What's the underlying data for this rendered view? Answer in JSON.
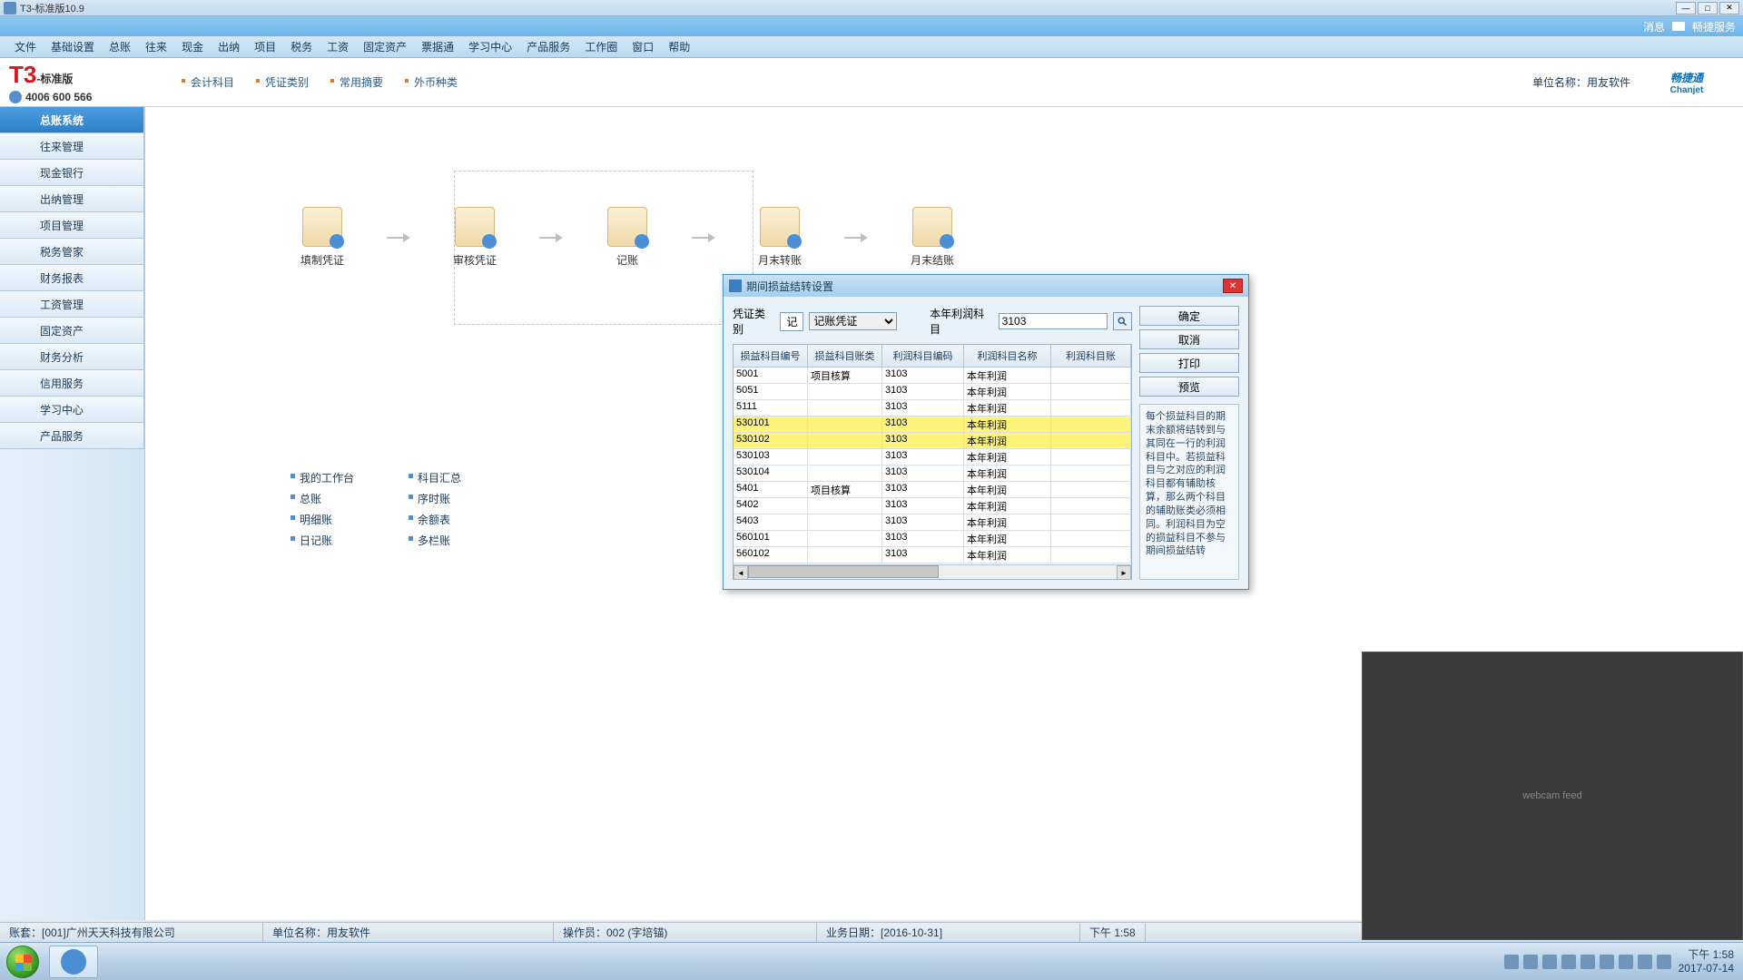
{
  "window": {
    "title": "T3-标准版10.9"
  },
  "msgbar": {
    "msg": "消息",
    "service": "畅捷服务"
  },
  "menubar": [
    "文件",
    "基础设置",
    "总账",
    "往来",
    "现金",
    "出纳",
    "项目",
    "税务",
    "工资",
    "固定资产",
    "票据通",
    "学习中心",
    "产品服务",
    "工作圈",
    "窗口",
    "帮助"
  ],
  "logo": {
    "prefix": "T3",
    "suffix": "-标准版",
    "phone": "4006 600 566"
  },
  "subtabs": [
    "会计科目",
    "凭证类别",
    "常用摘要",
    "外币种类"
  ],
  "unit": "单位名称：用友软件",
  "brand": {
    "cn": "畅捷通",
    "en": "Chanjet"
  },
  "sidebar": [
    {
      "label": "总账系统",
      "active": true
    },
    {
      "label": "往来管理"
    },
    {
      "label": "现金银行"
    },
    {
      "label": "出纳管理"
    },
    {
      "label": "项目管理"
    },
    {
      "label": "税务管家"
    },
    {
      "label": "财务报表"
    },
    {
      "label": "工资管理"
    },
    {
      "label": "固定资产"
    },
    {
      "label": "财务分析"
    },
    {
      "label": "信用服务"
    },
    {
      "label": "学习中心"
    },
    {
      "label": "产品服务"
    }
  ],
  "workflow": [
    "填制凭证",
    "审核凭证",
    "记账",
    "月末转账",
    "月末结账"
  ],
  "quicklinks": {
    "col1": [
      "我的工作台",
      "总账",
      "明细账",
      "日记账"
    ],
    "col2": [
      "科目汇总",
      "序时账",
      "余额表",
      "多栏账"
    ]
  },
  "dialog": {
    "title": "期间损益结转设置",
    "voucher_type_label": "凭证类别",
    "voucher_type_prefix": "记",
    "voucher_type_value": "记账凭证",
    "profit_account_label": "本年利润科目",
    "profit_account_value": "3103",
    "buttons": {
      "ok": "确定",
      "cancel": "取消",
      "print": "打印",
      "preview": "预览"
    },
    "columns": [
      "损益科目编号",
      "损益科目账类",
      "利润科目编码",
      "利润科目名称",
      "利润科目账"
    ],
    "rows": [
      {
        "c0": "5001",
        "c1": "项目核算",
        "c2": "3103",
        "c3": "本年利润",
        "hl": false
      },
      {
        "c0": "5051",
        "c1": "",
        "c2": "3103",
        "c3": "本年利润",
        "hl": false
      },
      {
        "c0": "5111",
        "c1": "",
        "c2": "3103",
        "c3": "本年利润",
        "hl": false
      },
      {
        "c0": "530101",
        "c1": "",
        "c2": "3103",
        "c3": "本年利润",
        "hl": true
      },
      {
        "c0": "530102",
        "c1": "",
        "c2": "3103",
        "c3": "本年利润",
        "hl": true
      },
      {
        "c0": "530103",
        "c1": "",
        "c2": "3103",
        "c3": "本年利润",
        "hl": false
      },
      {
        "c0": "530104",
        "c1": "",
        "c2": "3103",
        "c3": "本年利润",
        "hl": false
      },
      {
        "c0": "5401",
        "c1": "项目核算",
        "c2": "3103",
        "c3": "本年利润",
        "hl": false
      },
      {
        "c0": "5402",
        "c1": "",
        "c2": "3103",
        "c3": "本年利润",
        "hl": false
      },
      {
        "c0": "5403",
        "c1": "",
        "c2": "3103",
        "c3": "本年利润",
        "hl": false
      },
      {
        "c0": "560101",
        "c1": "",
        "c2": "3103",
        "c3": "本年利润",
        "hl": false
      },
      {
        "c0": "560102",
        "c1": "",
        "c2": "3103",
        "c3": "本年利润",
        "hl": false
      }
    ],
    "info": "每个损益科目的期末余额将结转到与其同在一行的利润科目中。若损益科目与之对应的利润科目都有辅助核算，那么两个科目的辅助账类必须相同。利润科目为空的损益科目不参与期间损益结转"
  },
  "statusbar": {
    "account_set": "账套：[001]广州天天科技有限公司",
    "unit": "单位名称：用友软件",
    "operator": "操作员：002 (字培锚)",
    "biz_date": "业务日期：[2016-10-31]",
    "time": "下午 1:58"
  },
  "tray": {
    "time": "下午 1:58",
    "date": "2017-07-14"
  },
  "colors": {
    "accent": "#2e7fc8",
    "highlight": "#fff47a",
    "dialog_border": "#4a8fc4"
  }
}
